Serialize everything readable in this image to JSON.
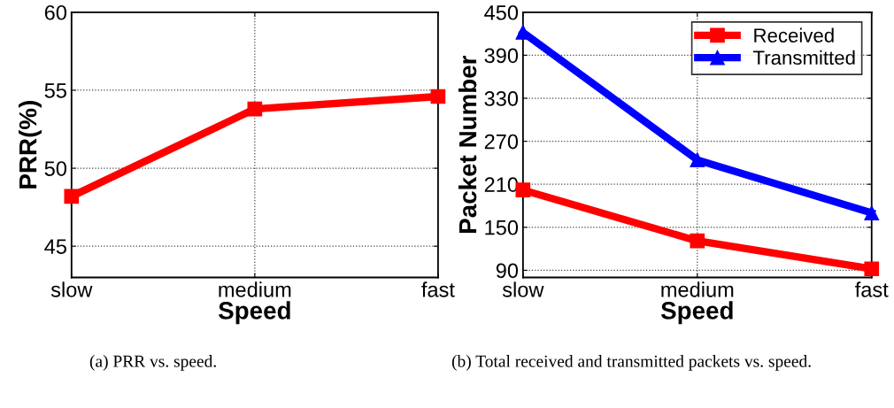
{
  "chart_data": [
    {
      "type": "line",
      "categories": [
        "slow",
        "medium",
        "fast"
      ],
      "xlabel": "Speed",
      "ylabel": "PRR(%)",
      "ylim": [
        43,
        60
      ],
      "yticks": [
        45,
        50,
        55,
        60
      ],
      "grid": true,
      "marker": "square",
      "line_style": "solid",
      "series": [
        {
          "color": "#ff0000",
          "values": [
            48.2,
            53.8,
            54.6
          ]
        }
      ],
      "annotations": [
        "(a) PRR vs. speed."
      ]
    },
    {
      "type": "line",
      "categories": [
        "slow",
        "medium",
        "fast"
      ],
      "xlabel": "Speed",
      "ylabel": "Packet Number",
      "ylim": [
        80,
        450
      ],
      "yticks": [
        90,
        150,
        210,
        270,
        330,
        390,
        450
      ],
      "grid": true,
      "legend": "top right",
      "line_style": "solid",
      "series": [
        {
          "name": "Received",
          "color": "#ff0000",
          "marker": "square",
          "values": [
            202,
            131,
            92
          ]
        },
        {
          "name": "Transmitted",
          "color": "#0000ff",
          "marker": "triangle",
          "values": [
            422,
            244,
            170
          ]
        }
      ],
      "annotations": [
        "(b) Total received and transmitted packets vs. speed."
      ]
    }
  ]
}
